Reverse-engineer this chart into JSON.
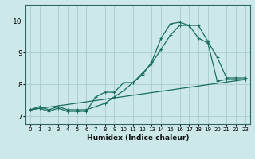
{
  "xlabel": "Humidex (Indice chaleur)",
  "ylabel": "",
  "bg_color": "#cce8e8",
  "grid_color": "#aacccc",
  "line_color": "#1a6e60",
  "xlim": [
    -0.5,
    23.5
  ],
  "ylim": [
    6.75,
    10.5
  ],
  "yticks": [
    7,
    8,
    9,
    10
  ],
  "xticks": [
    0,
    1,
    2,
    3,
    4,
    5,
    6,
    7,
    8,
    9,
    10,
    11,
    12,
    13,
    14,
    15,
    16,
    17,
    18,
    19,
    20,
    21,
    22,
    23
  ],
  "line1_x": [
    0,
    1,
    2,
    3,
    4,
    5,
    6,
    7,
    8,
    9,
    10,
    11,
    12,
    13,
    14,
    15,
    16,
    17,
    18,
    19,
    20,
    21,
    22,
    23
  ],
  "line1_y": [
    7.2,
    7.3,
    7.2,
    7.3,
    7.2,
    7.2,
    7.2,
    7.3,
    7.4,
    7.6,
    7.8,
    8.05,
    8.35,
    8.65,
    9.1,
    9.55,
    9.85,
    9.85,
    9.85,
    9.35,
    8.85,
    8.2,
    8.2,
    8.2
  ],
  "line2_x": [
    0,
    1,
    2,
    3,
    4,
    5,
    6,
    7,
    8,
    9,
    10,
    11,
    12,
    13,
    14,
    15,
    16,
    17,
    18,
    19,
    20,
    21,
    22,
    23
  ],
  "line2_y": [
    7.2,
    7.25,
    7.15,
    7.25,
    7.15,
    7.15,
    7.15,
    7.6,
    7.75,
    7.75,
    8.05,
    8.05,
    8.3,
    8.7,
    9.45,
    9.9,
    9.95,
    9.85,
    9.45,
    9.3,
    8.1,
    8.15,
    8.15,
    8.15
  ],
  "line3_x": [
    0,
    23
  ],
  "line3_y": [
    7.2,
    8.15
  ]
}
